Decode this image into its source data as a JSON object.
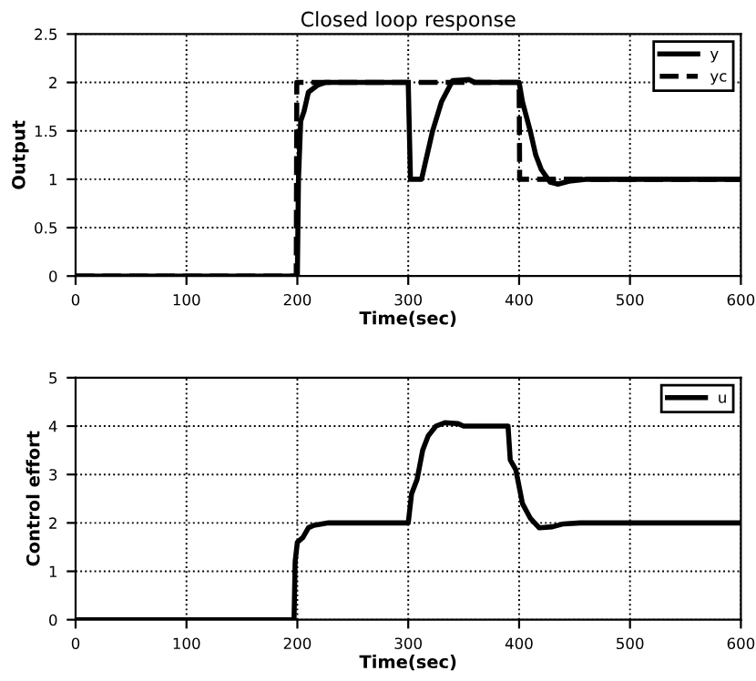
{
  "chart_data": [
    {
      "type": "line",
      "title": "Closed loop response",
      "xlabel": "Time(sec)",
      "ylabel": "Output",
      "xlim": [
        0,
        600
      ],
      "ylim": [
        0,
        2.5
      ],
      "xticks": [
        0,
        100,
        200,
        300,
        400,
        500,
        600
      ],
      "yticks": [
        0,
        0.5,
        1,
        1.5,
        2,
        2.5
      ],
      "grid": true,
      "legend": "top right",
      "series": [
        {
          "name": "y",
          "color": "#000000",
          "line_style": "solid",
          "x": [
            0,
            200,
            201,
            203,
            206,
            210,
            218,
            225,
            300,
            301,
            302,
            312,
            322,
            330,
            340,
            355,
            360,
            400,
            403,
            410,
            415,
            420,
            428,
            435,
            445,
            460,
            600
          ],
          "values": [
            0,
            0,
            1.0,
            1.6,
            1.7,
            1.9,
            1.97,
            2,
            2,
            1.5,
            1.0,
            1.0,
            1.5,
            1.8,
            2.02,
            2.03,
            2.0,
            2.0,
            1.8,
            1.5,
            1.25,
            1.1,
            0.97,
            0.95,
            0.98,
            1.0,
            1.0
          ]
        },
        {
          "name": "yc",
          "color": "#000000",
          "line_style": "dashed",
          "x": [
            0,
            199,
            199.5,
            400,
            400.5,
            600
          ],
          "values": [
            0,
            0,
            2,
            2,
            1,
            1
          ]
        }
      ]
    },
    {
      "type": "line",
      "xlabel": "Time(sec)",
      "ylabel": "Control effort",
      "xlim": [
        0,
        600
      ],
      "ylim": [
        0,
        5
      ],
      "xticks": [
        0,
        100,
        200,
        300,
        400,
        500,
        600
      ],
      "yticks": [
        0,
        1,
        2,
        3,
        4,
        5
      ],
      "grid": true,
      "legend": "top right",
      "series": [
        {
          "name": "u",
          "color": "#000000",
          "line_style": "solid",
          "x": [
            0,
            197,
            198,
            200,
            205,
            210,
            215,
            228,
            300,
            303,
            308,
            313,
            318,
            325,
            333,
            345,
            350,
            390,
            392,
            397,
            403,
            410,
            418,
            430,
            440,
            455,
            600
          ],
          "values": [
            0,
            0,
            1.2,
            1.6,
            1.7,
            1.9,
            1.95,
            2,
            2,
            2.6,
            2.9,
            3.5,
            3.8,
            4.0,
            4.07,
            4.05,
            4,
            4,
            3.3,
            3.1,
            2.4,
            2.1,
            1.9,
            1.92,
            1.98,
            2.0,
            2
          ]
        }
      ]
    }
  ]
}
